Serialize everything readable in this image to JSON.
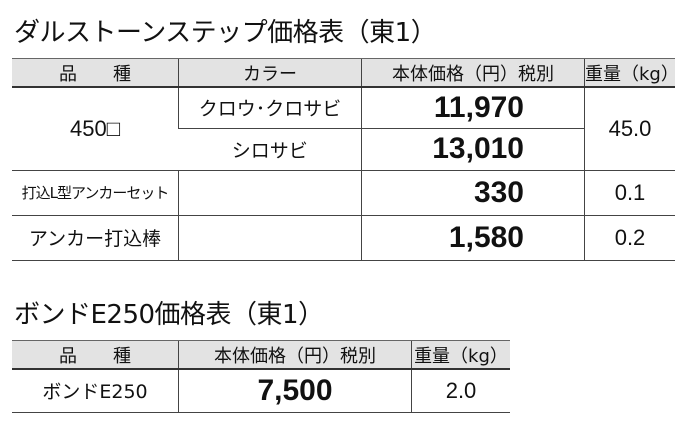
{
  "table1": {
    "title": "ダルストーンステップ価格表（東1）",
    "headers": [
      "品　　種",
      "カラー",
      "本体価格（円）税別",
      "重量（kg）"
    ],
    "rows": [
      {
        "item": "450□",
        "colors": [
          "クロウ･クロサビ",
          "シロサビ"
        ],
        "prices": [
          "11,970",
          "13,010"
        ],
        "weight": "45.0"
      },
      {
        "item": "打込L型アンカーセット",
        "price": "330",
        "weight": "0.1"
      },
      {
        "item": "アンカー打込棒",
        "price": "1,580",
        "weight": "0.2"
      }
    ]
  },
  "table2": {
    "title": "ボンドE250価格表（東1）",
    "headers": [
      "品　　種",
      "本体価格（円）税別",
      "重量（kg）"
    ],
    "row": {
      "item": "ボンドE250",
      "price": "7,500",
      "weight": "2.0"
    }
  }
}
